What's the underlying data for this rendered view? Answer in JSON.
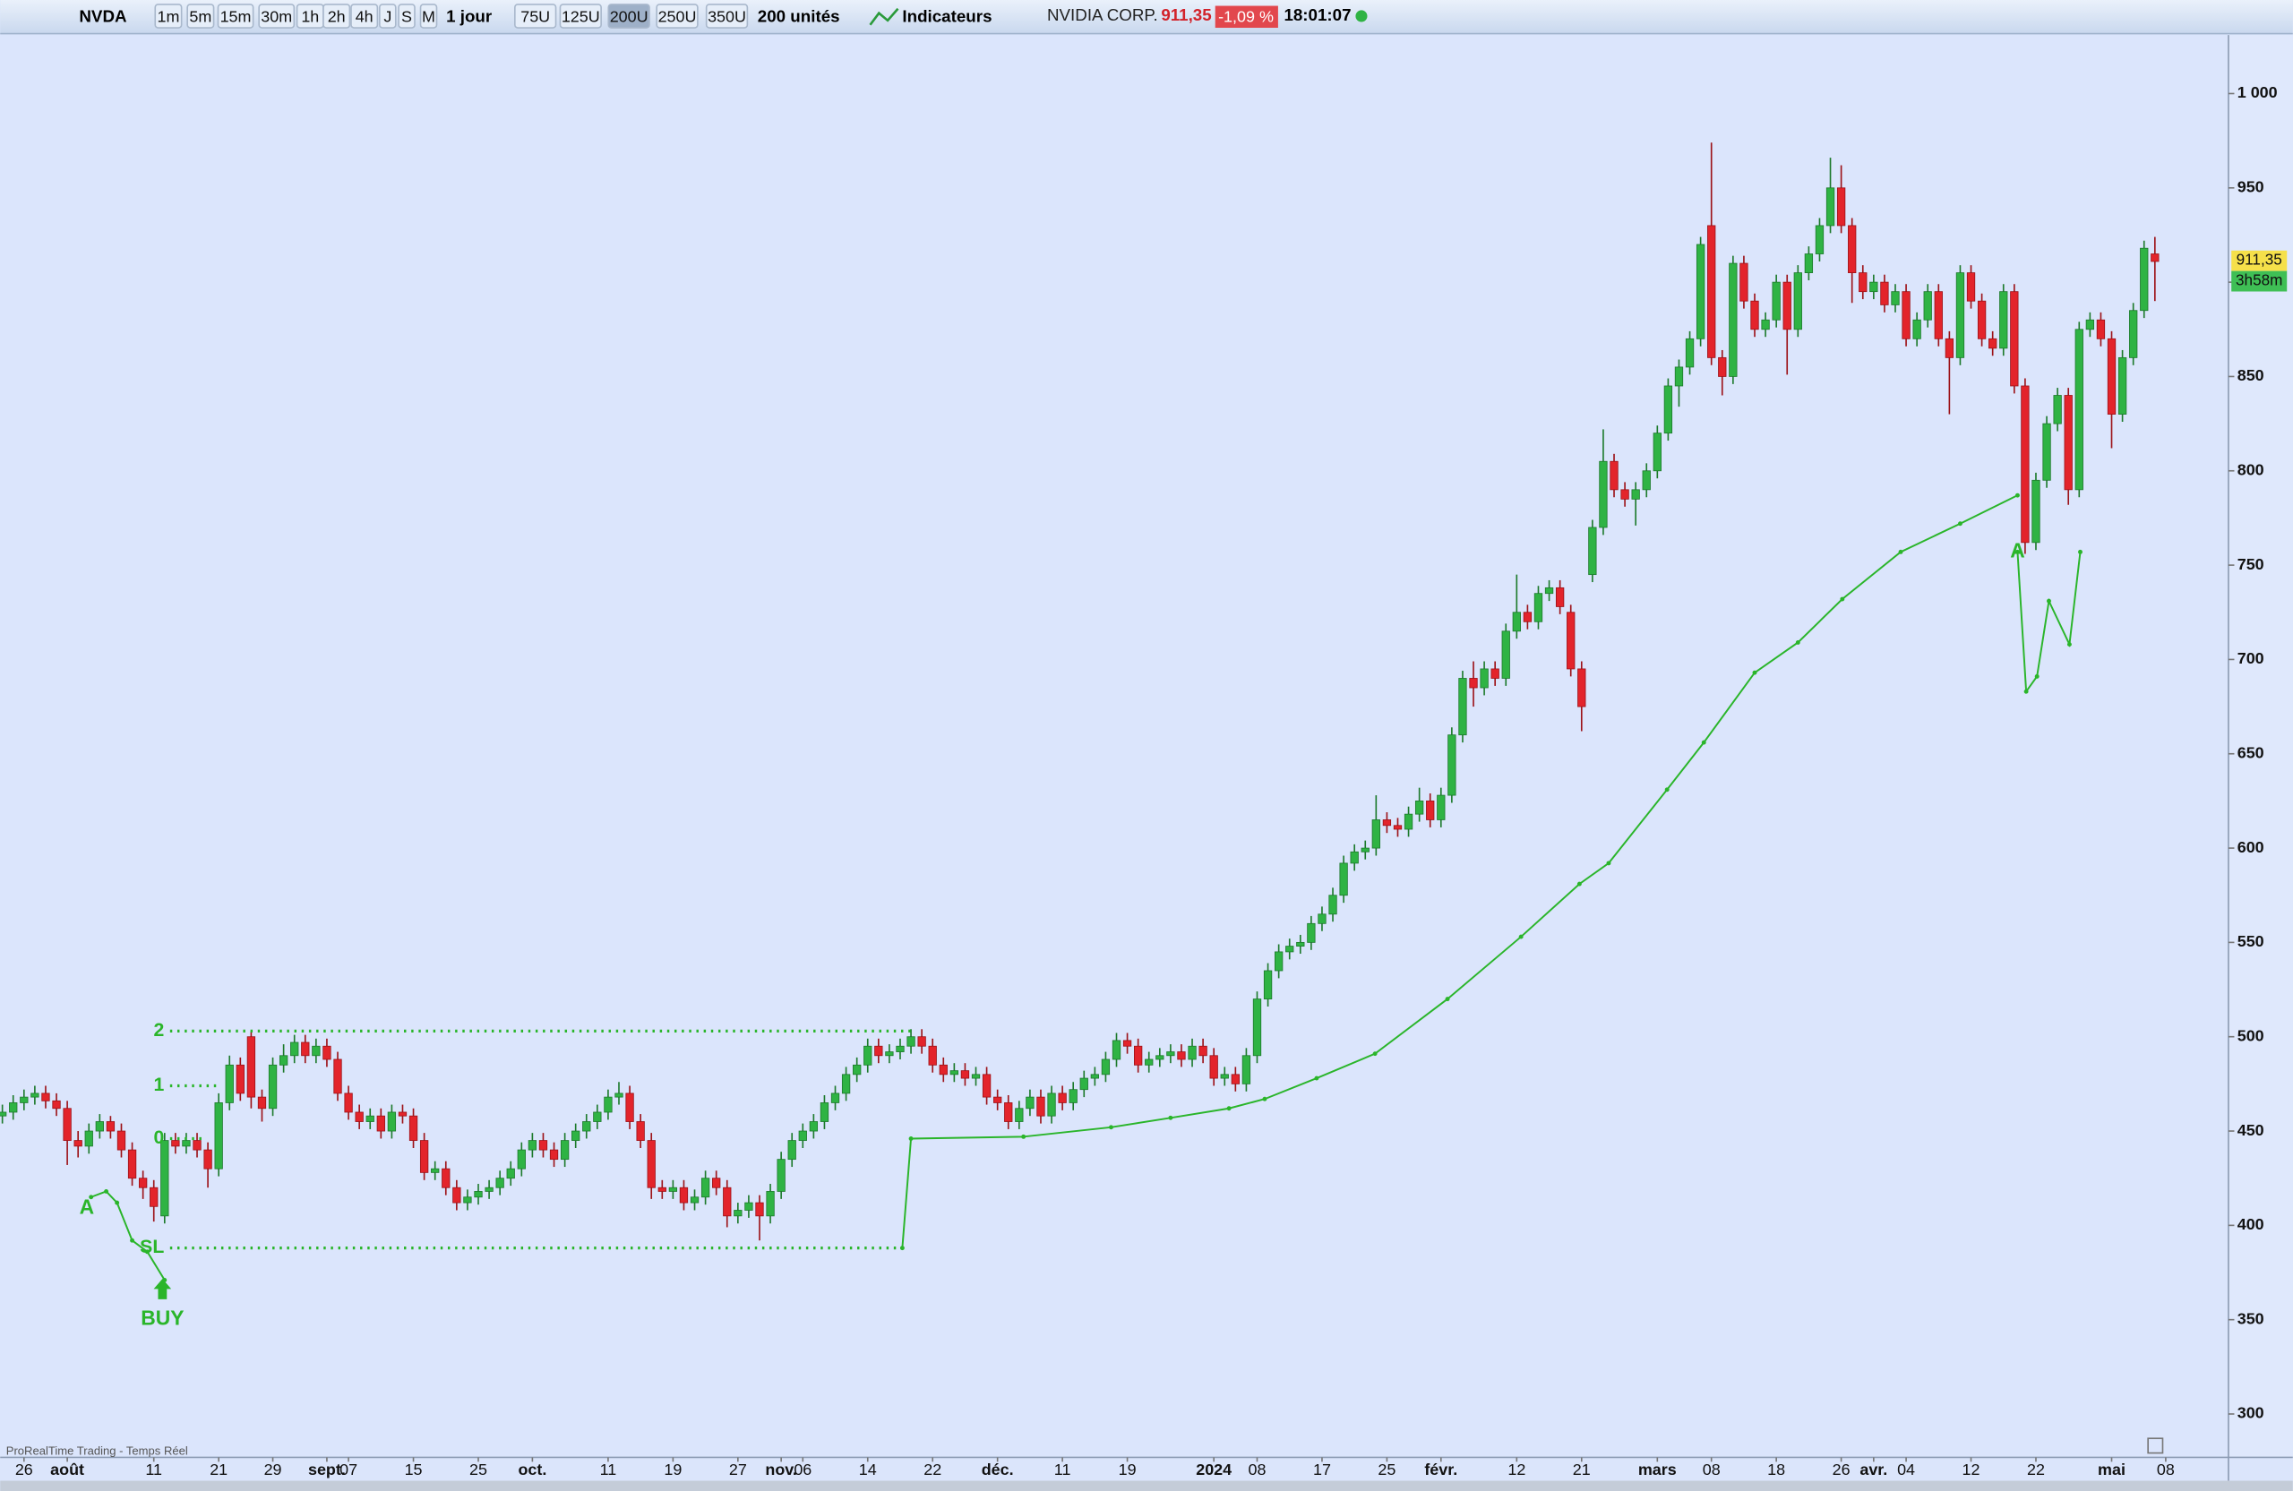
{
  "toolbar": {
    "symbol": "NVDA",
    "timeframes": [
      "1m",
      "5m",
      "15m",
      "30m",
      "1h",
      "2h",
      "4h",
      "J",
      "S",
      "M"
    ],
    "period": "1 jour",
    "units": [
      "75U",
      "125U",
      "200U",
      "250U",
      "350U"
    ],
    "units_select": "200 unités",
    "indicators": "Indicateurs",
    "name": "NVIDIA CORP.",
    "price": "911,35",
    "change": "-1,09 %",
    "time": "18:01:07"
  },
  "footer": "ProRealTime Trading - Temps Réel",
  "chart_data": {
    "type": "candlestick",
    "up_color": "#2fb344",
    "down_color": "#e3242b",
    "line_color": "#2ab52a",
    "xlim": [
      -0.2,
      205.8
    ],
    "ylim": [
      277,
      1031
    ],
    "yticks": [
      300,
      350,
      400,
      450,
      500,
      550,
      600,
      650,
      700,
      750,
      800,
      850,
      900,
      950,
      {
        "value": 1000,
        "label": "1 000"
      }
    ],
    "xticks": [
      {
        "value": 2,
        "label": "26"
      },
      {
        "value": 6,
        "label": "août"
      },
      {
        "value": 14,
        "label": "11"
      },
      {
        "value": 20,
        "label": "21"
      },
      {
        "value": 25,
        "label": "29"
      },
      {
        "value": 30,
        "label": "sept."
      },
      {
        "value": 32,
        "label": "07"
      },
      {
        "value": 38,
        "label": "15"
      },
      {
        "value": 44,
        "label": "25"
      },
      {
        "value": 49,
        "label": "oct."
      },
      {
        "value": 56,
        "label": "11"
      },
      {
        "value": 62,
        "label": "19"
      },
      {
        "value": 68,
        "label": "27"
      },
      {
        "value": 72,
        "label": "nov."
      },
      {
        "value": 74,
        "label": "06"
      },
      {
        "value": 80,
        "label": "14"
      },
      {
        "value": 86,
        "label": "22"
      },
      {
        "value": 92,
        "label": "déc."
      },
      {
        "value": 98,
        "label": "11"
      },
      {
        "value": 104,
        "label": "19"
      },
      {
        "value": 112,
        "label": "2024"
      },
      {
        "value": 116,
        "label": "08"
      },
      {
        "value": 122,
        "label": "17"
      },
      {
        "value": 128,
        "label": "25"
      },
      {
        "value": 133,
        "label": "févr."
      },
      {
        "value": 140,
        "label": "12"
      },
      {
        "value": 146,
        "label": "21"
      },
      {
        "value": 153,
        "label": "mars"
      },
      {
        "value": 158,
        "label": "08"
      },
      {
        "value": 164,
        "label": "18"
      },
      {
        "value": 170,
        "label": "26"
      },
      {
        "value": 173,
        "label": "avr."
      },
      {
        "value": 176,
        "label": "04"
      },
      {
        "value": 182,
        "label": "12"
      },
      {
        "value": 188,
        "label": "22"
      },
      {
        "value": 195,
        "label": "mai"
      },
      {
        "value": 200,
        "label": "08"
      }
    ],
    "ohlc": [
      [
        458,
        464,
        454,
        460
      ],
      [
        460,
        469,
        456,
        465
      ],
      [
        465,
        472,
        461,
        468
      ],
      [
        468,
        474,
        464,
        470
      ],
      [
        470,
        474,
        462,
        466
      ],
      [
        466,
        470,
        458,
        462
      ],
      [
        462,
        466,
        432,
        445
      ],
      [
        445,
        450,
        436,
        442
      ],
      [
        442,
        454,
        438,
        450
      ],
      [
        450,
        459,
        446,
        455
      ],
      [
        455,
        458,
        446,
        450
      ],
      [
        450,
        454,
        436,
        440
      ],
      [
        440,
        444,
        421,
        425
      ],
      [
        425,
        429,
        414,
        420
      ],
      [
        420,
        424,
        402,
        410
      ],
      [
        405,
        449,
        401,
        445
      ],
      [
        445,
        449,
        438,
        442
      ],
      [
        442,
        449,
        438,
        445
      ],
      [
        445,
        449,
        436,
        440
      ],
      [
        440,
        444,
        420,
        430
      ],
      [
        430,
        470,
        426,
        465
      ],
      [
        465,
        490,
        461,
        485
      ],
      [
        485,
        489,
        466,
        470
      ],
      [
        500,
        503,
        462,
        468
      ],
      [
        468,
        472,
        455,
        462
      ],
      [
        462,
        489,
        458,
        485
      ],
      [
        485,
        496,
        481,
        490
      ],
      [
        490,
        501,
        486,
        497
      ],
      [
        497,
        501,
        486,
        490
      ],
      [
        490,
        499,
        486,
        495
      ],
      [
        495,
        499,
        484,
        488
      ],
      [
        488,
        492,
        466,
        470
      ],
      [
        470,
        474,
        456,
        460
      ],
      [
        460,
        464,
        451,
        455
      ],
      [
        455,
        462,
        451,
        458
      ],
      [
        458,
        462,
        446,
        450
      ],
      [
        450,
        464,
        446,
        460
      ],
      [
        460,
        464,
        454,
        458
      ],
      [
        458,
        462,
        441,
        445
      ],
      [
        445,
        449,
        424,
        428
      ],
      [
        428,
        434,
        424,
        430
      ],
      [
        430,
        434,
        416,
        420
      ],
      [
        420,
        424,
        408,
        412
      ],
      [
        412,
        419,
        408,
        415
      ],
      [
        415,
        422,
        411,
        418
      ],
      [
        418,
        424,
        414,
        420
      ],
      [
        420,
        429,
        416,
        425
      ],
      [
        425,
        434,
        421,
        430
      ],
      [
        430,
        444,
        426,
        440
      ],
      [
        440,
        449,
        436,
        445
      ],
      [
        445,
        449,
        436,
        440
      ],
      [
        440,
        444,
        431,
        435
      ],
      [
        435,
        449,
        431,
        445
      ],
      [
        445,
        454,
        441,
        450
      ],
      [
        450,
        459,
        446,
        455
      ],
      [
        455,
        464,
        451,
        460
      ],
      [
        460,
        472,
        456,
        468
      ],
      [
        468,
        476,
        464,
        470
      ],
      [
        470,
        474,
        451,
        455
      ],
      [
        455,
        459,
        441,
        445
      ],
      [
        445,
        449,
        414,
        420
      ],
      [
        420,
        424,
        414,
        418
      ],
      [
        418,
        424,
        414,
        420
      ],
      [
        420,
        424,
        408,
        412
      ],
      [
        412,
        419,
        408,
        415
      ],
      [
        415,
        429,
        411,
        425
      ],
      [
        425,
        429,
        416,
        420
      ],
      [
        420,
        424,
        399,
        405
      ],
      [
        405,
        412,
        401,
        408
      ],
      [
        408,
        416,
        404,
        412
      ],
      [
        412,
        416,
        392,
        405
      ],
      [
        405,
        422,
        401,
        418
      ],
      [
        418,
        439,
        414,
        435
      ],
      [
        435,
        449,
        431,
        445
      ],
      [
        445,
        454,
        441,
        450
      ],
      [
        450,
        459,
        446,
        455
      ],
      [
        455,
        469,
        451,
        465
      ],
      [
        465,
        474,
        461,
        470
      ],
      [
        470,
        484,
        466,
        480
      ],
      [
        480,
        489,
        476,
        485
      ],
      [
        485,
        499,
        481,
        495
      ],
      [
        495,
        499,
        486,
        490
      ],
      [
        490,
        496,
        486,
        492
      ],
      [
        492,
        499,
        488,
        495
      ],
      [
        495,
        504,
        491,
        500
      ],
      [
        500,
        504,
        491,
        495
      ],
      [
        495,
        499,
        481,
        485
      ],
      [
        485,
        489,
        476,
        480
      ],
      [
        480,
        486,
        476,
        482
      ],
      [
        482,
        486,
        474,
        478
      ],
      [
        478,
        484,
        474,
        480
      ],
      [
        480,
        484,
        464,
        468
      ],
      [
        468,
        472,
        461,
        465
      ],
      [
        465,
        469,
        451,
        455
      ],
      [
        455,
        466,
        451,
        462
      ],
      [
        462,
        472,
        458,
        468
      ],
      [
        468,
        472,
        454,
        458
      ],
      [
        458,
        474,
        454,
        470
      ],
      [
        470,
        474,
        461,
        465
      ],
      [
        465,
        476,
        461,
        472
      ],
      [
        472,
        482,
        468,
        478
      ],
      [
        478,
        484,
        474,
        480
      ],
      [
        480,
        492,
        476,
        488
      ],
      [
        488,
        502,
        484,
        498
      ],
      [
        498,
        502,
        491,
        495
      ],
      [
        495,
        499,
        481,
        485
      ],
      [
        485,
        492,
        481,
        488
      ],
      [
        488,
        494,
        484,
        490
      ],
      [
        490,
        496,
        486,
        492
      ],
      [
        492,
        496,
        484,
        488
      ],
      [
        488,
        499,
        484,
        495
      ],
      [
        495,
        499,
        486,
        490
      ],
      [
        490,
        494,
        474,
        478
      ],
      [
        478,
        484,
        474,
        480
      ],
      [
        480,
        484,
        471,
        475
      ],
      [
        475,
        494,
        471,
        490
      ],
      [
        490,
        524,
        486,
        520
      ],
      [
        520,
        539,
        516,
        535
      ],
      [
        535,
        549,
        531,
        545
      ],
      [
        545,
        552,
        541,
        548
      ],
      [
        548,
        554,
        544,
        550
      ],
      [
        550,
        564,
        546,
        560
      ],
      [
        560,
        569,
        556,
        565
      ],
      [
        565,
        579,
        561,
        575
      ],
      [
        575,
        596,
        571,
        592
      ],
      [
        592,
        602,
        588,
        598
      ],
      [
        598,
        604,
        594,
        600
      ],
      [
        600,
        628,
        596,
        615
      ],
      [
        615,
        619,
        608,
        612
      ],
      [
        612,
        616,
        606,
        610
      ],
      [
        610,
        622,
        606,
        618
      ],
      [
        618,
        632,
        614,
        625
      ],
      [
        625,
        629,
        611,
        615
      ],
      [
        615,
        632,
        611,
        628
      ],
      [
        628,
        664,
        624,
        660
      ],
      [
        660,
        694,
        656,
        690
      ],
      [
        690,
        699,
        675,
        685
      ],
      [
        685,
        699,
        681,
        695
      ],
      [
        695,
        699,
        686,
        690
      ],
      [
        690,
        719,
        686,
        715
      ],
      [
        715,
        745,
        711,
        725
      ],
      [
        725,
        729,
        716,
        720
      ],
      [
        720,
        739,
        716,
        735
      ],
      [
        735,
        742,
        731,
        738
      ],
      [
        738,
        742,
        724,
        728
      ],
      [
        725,
        729,
        691,
        695
      ],
      [
        695,
        699,
        662,
        675
      ],
      [
        745,
        774,
        741,
        770
      ],
      [
        770,
        822,
        766,
        805
      ],
      [
        805,
        809,
        786,
        790
      ],
      [
        790,
        794,
        781,
        785
      ],
      [
        785,
        794,
        771,
        790
      ],
      [
        790,
        804,
        786,
        800
      ],
      [
        800,
        824,
        796,
        820
      ],
      [
        820,
        849,
        816,
        845
      ],
      [
        845,
        859,
        834,
        855
      ],
      [
        855,
        874,
        851,
        870
      ],
      [
        870,
        924,
        866,
        920
      ],
      [
        930,
        974,
        856,
        860
      ],
      [
        860,
        864,
        840,
        850
      ],
      [
        850,
        914,
        846,
        910
      ],
      [
        910,
        914,
        886,
        890
      ],
      [
        890,
        894,
        871,
        875
      ],
      [
        875,
        884,
        871,
        880
      ],
      [
        880,
        904,
        876,
        900
      ],
      [
        900,
        904,
        851,
        875
      ],
      [
        875,
        909,
        871,
        905
      ],
      [
        905,
        919,
        901,
        915
      ],
      [
        915,
        934,
        911,
        930
      ],
      [
        930,
        966,
        926,
        950
      ],
      [
        950,
        962,
        926,
        930
      ],
      [
        930,
        934,
        889,
        905
      ],
      [
        905,
        909,
        891,
        895
      ],
      [
        895,
        904,
        891,
        900
      ],
      [
        900,
        904,
        884,
        888
      ],
      [
        888,
        899,
        884,
        895
      ],
      [
        895,
        899,
        866,
        870
      ],
      [
        870,
        884,
        866,
        880
      ],
      [
        880,
        899,
        876,
        895
      ],
      [
        895,
        899,
        866,
        870
      ],
      [
        870,
        874,
        830,
        860
      ],
      [
        860,
        909,
        856,
        905
      ],
      [
        905,
        909,
        886,
        890
      ],
      [
        890,
        894,
        866,
        870
      ],
      [
        870,
        874,
        861,
        865
      ],
      [
        865,
        899,
        861,
        895
      ],
      [
        895,
        899,
        841,
        845
      ],
      [
        845,
        849,
        756,
        762
      ],
      [
        762,
        799,
        758,
        795
      ],
      [
        795,
        829,
        791,
        825
      ],
      [
        825,
        844,
        821,
        840
      ],
      [
        840,
        844,
        782,
        790
      ],
      [
        790,
        879,
        786,
        875
      ],
      [
        875,
        884,
        871,
        880
      ],
      [
        880,
        884,
        866,
        870
      ],
      [
        870,
        874,
        812,
        830
      ],
      [
        830,
        864,
        826,
        860
      ],
      [
        860,
        889,
        856,
        885
      ],
      [
        885,
        922,
        881,
        918
      ],
      [
        915,
        924,
        890,
        911
      ]
    ],
    "line": {
      "x": [
        8.2,
        9.6,
        10.6,
        12,
        13.4,
        15,
        null,
        83.2,
        84,
        94.4,
        102.5,
        108,
        113.4,
        116.7,
        121.5,
        126.9,
        133.6,
        140.4,
        145.8,
        148.5,
        153.9,
        157.3,
        162,
        166,
        170.1,
        175.5,
        181,
        186.3,
        null,
        186.3,
        187.1,
        188.1,
        189.2,
        191.1,
        192.1
      ],
      "values": [
        415,
        418,
        412,
        392,
        386,
        371,
        null,
        388,
        446,
        447,
        452,
        457,
        462,
        467,
        478,
        491,
        520,
        553,
        581,
        592,
        631,
        656,
        693,
        709,
        732,
        757,
        772,
        787,
        null,
        757,
        683,
        691,
        731,
        708,
        757
      ]
    },
    "levels": [
      {
        "label": "2",
        "value": 503,
        "x": [
          15.5,
          84.3
        ]
      },
      {
        "label": "1",
        "value": 474,
        "x": [
          15.5,
          20
        ]
      },
      {
        "label": "0",
        "value": 446,
        "x": [
          15.5,
          18.8
        ]
      },
      {
        "label": "SL",
        "value": 388,
        "x": [
          15.5,
          83.2
        ]
      }
    ],
    "annotations": [
      {
        "text": "A",
        "x": 7.8,
        "y": 409
      },
      {
        "text": "BUY",
        "x": 14.8,
        "y": 350
      },
      {
        "text": "A",
        "x": 186.3,
        "y": 757
      }
    ],
    "last_price": {
      "value": 911.35,
      "label": "911,35"
    },
    "countdown": "3h58m"
  }
}
